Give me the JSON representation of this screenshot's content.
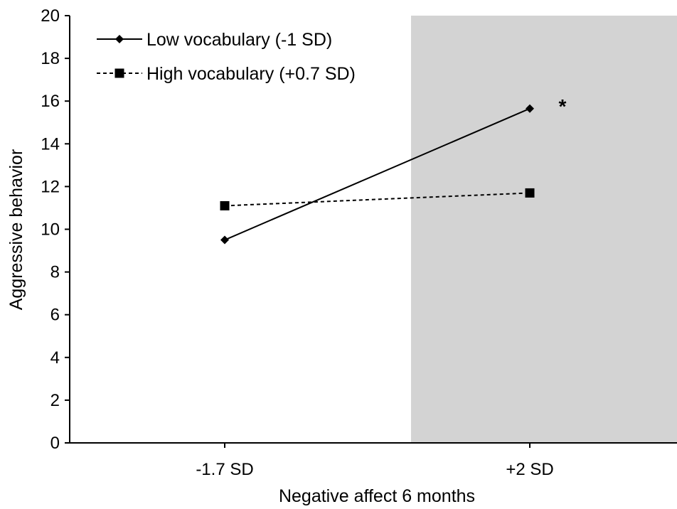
{
  "chart_data": {
    "type": "line",
    "title": "",
    "xlabel": "Negative affect 6 months",
    "ylabel": "Aggressive behavior",
    "categories": [
      "-1.7 SD",
      "+2 SD"
    ],
    "ylim": [
      0,
      20
    ],
    "yticks": [
      0,
      2,
      4,
      6,
      8,
      10,
      12,
      14,
      16,
      18,
      20
    ],
    "grid": false,
    "legend_position": "top-left",
    "shaded_region": {
      "from_category": "+2 SD",
      "color": "#d3d3d3"
    },
    "series": [
      {
        "name": "Low vocabulary (-1 SD)",
        "values": [
          9.5,
          15.65
        ],
        "marker": "diamond",
        "line": "solid",
        "color": "#000000"
      },
      {
        "name": "High vocabulary (+0.7 SD)",
        "values": [
          11.1,
          11.7
        ],
        "marker": "square",
        "line": "dashed",
        "color": "#000000"
      }
    ],
    "annotations": [
      {
        "text": "*",
        "category": "+2 SD",
        "value": 16
      }
    ]
  }
}
